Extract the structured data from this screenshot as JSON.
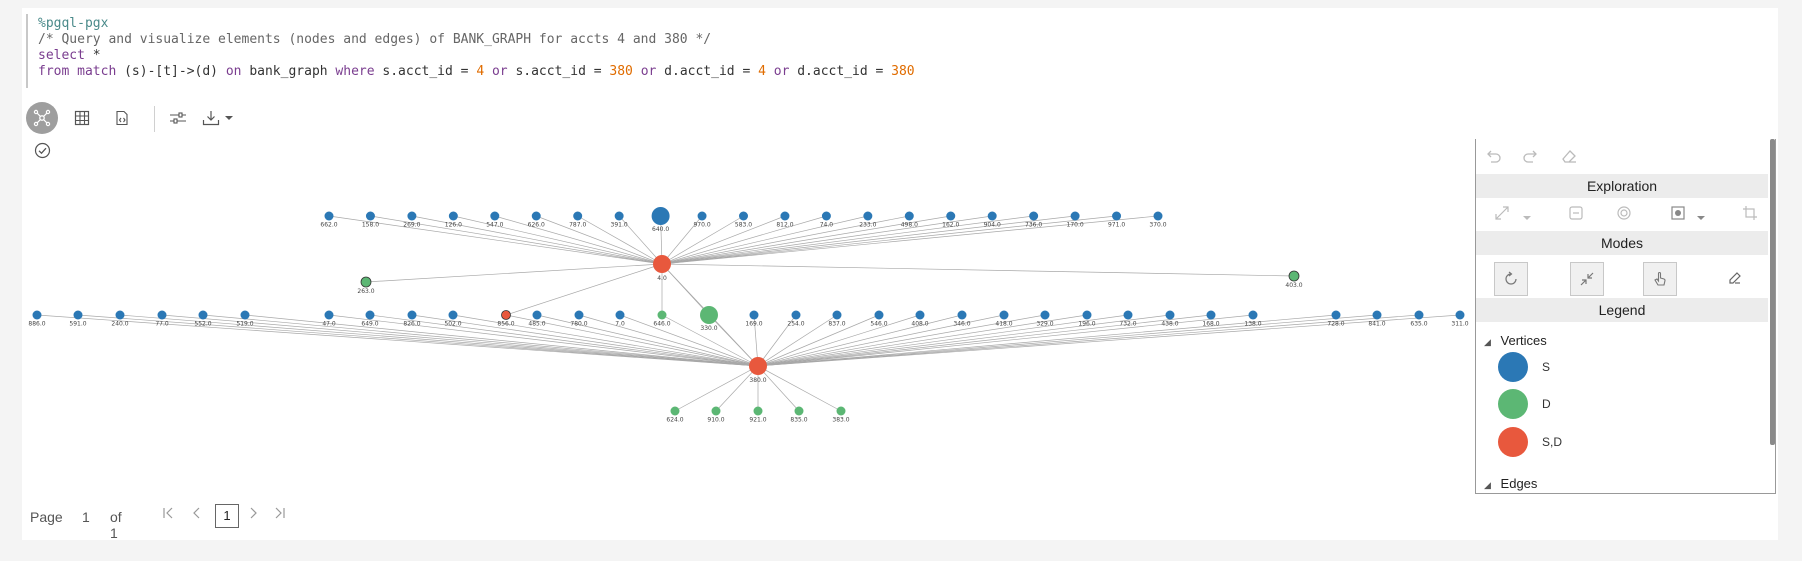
{
  "code": {
    "line1": "%pgql-pgx",
    "line2": "/* Query and visualize elements (nodes and edges) of BANK_GRAPH for accts 4 and 380 */",
    "line3_kw": "select",
    "line3_rest": " *",
    "line4": [
      {
        "t": "from match ",
        "c": "kw"
      },
      {
        "t": "(s)-[t]->(d) ",
        "c": ""
      },
      {
        "t": "on ",
        "c": "kw"
      },
      {
        "t": "bank_graph ",
        "c": ""
      },
      {
        "t": "where ",
        "c": "kw"
      },
      {
        "t": "s.acct_id = ",
        "c": ""
      },
      {
        "t": "4 ",
        "c": "num"
      },
      {
        "t": "or ",
        "c": "kw"
      },
      {
        "t": "s.acct_id = ",
        "c": ""
      },
      {
        "t": "380 ",
        "c": "num"
      },
      {
        "t": "or ",
        "c": "kw"
      },
      {
        "t": "d.acct_id = ",
        "c": ""
      },
      {
        "t": "4 ",
        "c": "num"
      },
      {
        "t": "or ",
        "c": "kw"
      },
      {
        "t": "d.acct_id = ",
        "c": ""
      },
      {
        "t": "380",
        "c": "num"
      }
    ]
  },
  "toolbar": {
    "graph_icon": "graph-view-icon",
    "table_icon": "table-view-icon",
    "code_icon": "code-view-icon",
    "settings_icon": "settings-sliders-icon",
    "download_icon": "download-icon"
  },
  "graph": {
    "colors": {
      "S": "#2b78b5",
      "D": "#5cb774",
      "SD": "#e8583d",
      "edge": "#a8a8a8"
    },
    "hub1_label": "4.0",
    "hub2_label": "380.0",
    "row1": [
      "662.0",
      "158.0",
      "269.0",
      "126.0",
      "547.0",
      "626.0",
      "787.0",
      "391.0",
      "640.0",
      "970.0",
      "583.0",
      "812.0",
      "74.0",
      "233.0",
      "498.0",
      "162.0",
      "904.0",
      "736.0",
      "170.0",
      "971.0",
      "370.0"
    ],
    "hub1_extra": [
      "263.0",
      "403.0"
    ],
    "row2": [
      "886.0",
      "591.0",
      "240.0",
      "77.0",
      "552.0",
      "519.0",
      "47.0",
      "649.0",
      "826.0",
      "502.0",
      "856.0",
      "485.0",
      "780.0",
      "7.0",
      "646.0",
      "330.0",
      "169.0",
      "254.0",
      "837.0",
      "546.0",
      "408.0",
      "346.0",
      "418.0",
      "329.0",
      "196.0",
      "732.0",
      "438.0",
      "168.0",
      "138.0",
      "728.0",
      "841.0",
      "635.0",
      "311.0"
    ],
    "row3": [
      "624.0",
      "910.0",
      "921.0",
      "835.0",
      "383.0"
    ]
  },
  "panel": {
    "exploration": "Exploration",
    "modes": "Modes",
    "legend": "Legend",
    "vertices": "Vertices",
    "edges": "Edges",
    "legend_items": [
      {
        "label": "S",
        "color": "#2b78b5"
      },
      {
        "label": "D",
        "color": "#5cb774"
      },
      {
        "label": "S,D",
        "color": "#e8583d"
      }
    ]
  },
  "pager": {
    "page_label": "Page",
    "page_num": "1",
    "of_label": "of 1",
    "current": "1"
  }
}
